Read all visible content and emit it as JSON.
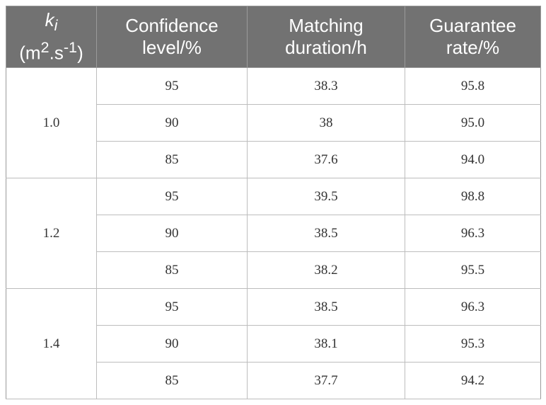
{
  "header": {
    "k_symbol": "k",
    "k_subscript": "i",
    "k_unit_pre": "(m",
    "k_unit_sup1": "2",
    "k_unit_mid": ".s",
    "k_unit_sup2": "-1",
    "k_unit_post": ")",
    "confidence_line1": "Confidence",
    "confidence_line2": "level/%",
    "duration_line1": "Matching",
    "duration_line2": "duration/h",
    "guarantee_line1": "Guarantee",
    "guarantee_line2": "rate/%"
  },
  "groups": [
    {
      "k": "1.0",
      "rows": [
        {
          "confidence": "95",
          "duration": "38.3",
          "rate": "95.8"
        },
        {
          "confidence": "90",
          "duration": "38",
          "rate": "95.0"
        },
        {
          "confidence": "85",
          "duration": "37.6",
          "rate": "94.0"
        }
      ]
    },
    {
      "k": "1.2",
      "rows": [
        {
          "confidence": "95",
          "duration": "39.5",
          "rate": "98.8"
        },
        {
          "confidence": "90",
          "duration": "38.5",
          "rate": "96.3"
        },
        {
          "confidence": "85",
          "duration": "38.2",
          "rate": "95.5"
        }
      ]
    },
    {
      "k": "1.4",
      "rows": [
        {
          "confidence": "95",
          "duration": "38.5",
          "rate": "96.3"
        },
        {
          "confidence": "90",
          "duration": "38.1",
          "rate": "95.3"
        },
        {
          "confidence": "85",
          "duration": "37.7",
          "rate": "94.2"
        }
      ]
    }
  ]
}
